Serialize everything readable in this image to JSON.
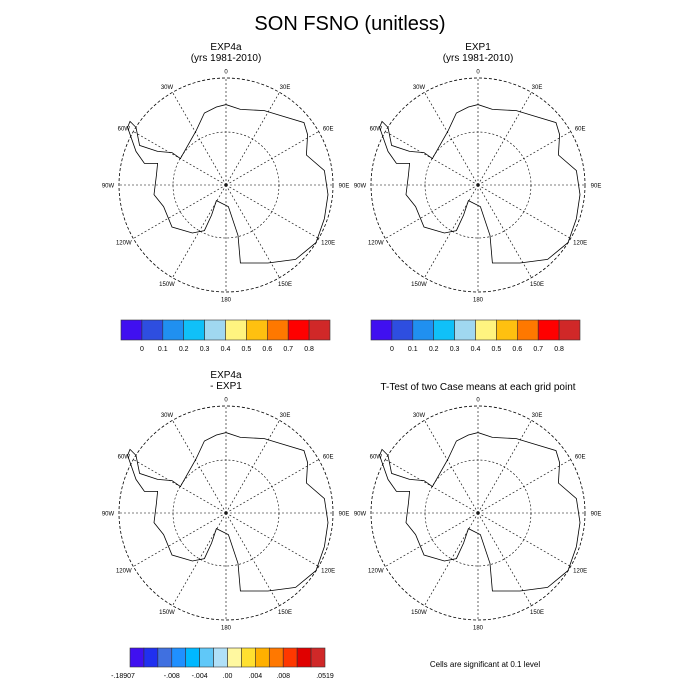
{
  "title": "SON FSNO (unitless)",
  "panels": [
    {
      "title1": "EXP4a",
      "title2": "(yrs 1981-2010)"
    },
    {
      "title1": "EXP1",
      "title2": "(yrs 1981-2010)"
    },
    {
      "title1": "EXP4a",
      "title2": "- EXP1"
    },
    {
      "title1": "T-Test of two Case means at each grid point"
    }
  ],
  "meridian_labels": [
    "0",
    "30E",
    "60E",
    "90E",
    "120E",
    "150E",
    "180",
    "150W",
    "120W",
    "90W",
    "60W",
    "30W"
  ],
  "colorbar_main": {
    "colors": [
      "#4010f0",
      "#2e4ee0",
      "#2090f0",
      "#10c0f8",
      "#a0d8f0",
      "#fff480",
      "#ffc010",
      "#ff7800",
      "#ff0000",
      "#d02828"
    ],
    "labels": [
      "0",
      "0.1",
      "0.2",
      "0.3",
      "0.4",
      "0.5",
      "0.6",
      "0.7",
      "0.8"
    ]
  },
  "colorbar_diff": {
    "colors": [
      "#4010f0",
      "#2030f0",
      "#4070e0",
      "#2090ff",
      "#00b8ff",
      "#60c8f8",
      "#b0e0f8",
      "#fff8a0",
      "#ffe030",
      "#ffb000",
      "#ff7800",
      "#ff3800",
      "#e00000",
      "#d02828"
    ],
    "labels": [
      "-.18907",
      "-.008",
      "-.004",
      ".00",
      ".004",
      ".008",
      ".0519"
    ]
  },
  "footnote": "Cells are significant at 0.1 level"
}
